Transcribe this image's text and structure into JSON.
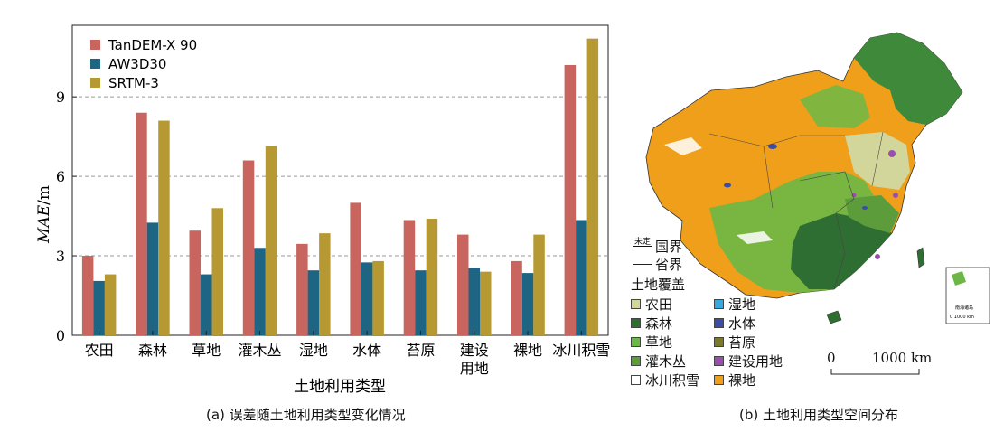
{
  "chart_data": {
    "type": "bar",
    "categories": [
      "农田",
      "森林",
      "草地",
      "灌木丛",
      "湿地",
      "水体",
      "苔原",
      "建设\n用地",
      "裸地",
      "冰川积雪"
    ],
    "series": [
      {
        "name": "TanDEM-X 90",
        "color": "#c8655f",
        "values": [
          3.0,
          8.4,
          3.95,
          6.6,
          3.45,
          5.0,
          4.35,
          3.8,
          2.8,
          10.2
        ]
      },
      {
        "name": "AW3D30",
        "color": "#1e6483",
        "values": [
          2.05,
          4.25,
          2.3,
          3.3,
          2.45,
          2.75,
          2.45,
          2.55,
          2.35,
          4.35
        ]
      },
      {
        "name": "SRTM-3",
        "color": "#b79933",
        "values": [
          2.3,
          8.1,
          4.8,
          7.15,
          3.85,
          2.8,
          4.4,
          2.4,
          3.8,
          11.2
        ]
      }
    ],
    "ylabel_italic": "MAE",
    "ylabel_unit": "/m",
    "xlabel": "土地利用类型",
    "ylim": [
      0,
      11.7
    ],
    "yticks": [
      0,
      3,
      6,
      9
    ],
    "grid": "horizontal-dashed",
    "legend_position": "top-left"
  },
  "captions": {
    "left": "(a) 误差随土地利用类型变化情况",
    "right": "(b) 土地利用类型空间分布"
  },
  "map": {
    "boundary_legend": [
      {
        "label": "国界",
        "note": "未定"
      },
      {
        "label": "省界"
      }
    ],
    "land_cover_title": "土地覆盖",
    "land_cover": [
      {
        "label": "农田",
        "color": "#d3d69a"
      },
      {
        "label": "湿地",
        "color": "#35a8e0"
      },
      {
        "label": "森林",
        "color": "#2f6e32"
      },
      {
        "label": "水体",
        "color": "#3b4da6"
      },
      {
        "label": "草地",
        "color": "#6cb846"
      },
      {
        "label": "苔原",
        "color": "#7b7a2c"
      },
      {
        "label": "灌木丛",
        "color": "#5c9c3a"
      },
      {
        "label": "建设用地",
        "color": "#9a4fae"
      },
      {
        "label": "冰川积雪",
        "color": "#ffffff"
      },
      {
        "label": "裸地",
        "color": "#ef9f19"
      }
    ],
    "scale_start": "0",
    "scale_end": "1000 km",
    "inset_label": "南海诸岛",
    "inset_scale": "0   1000 km"
  }
}
